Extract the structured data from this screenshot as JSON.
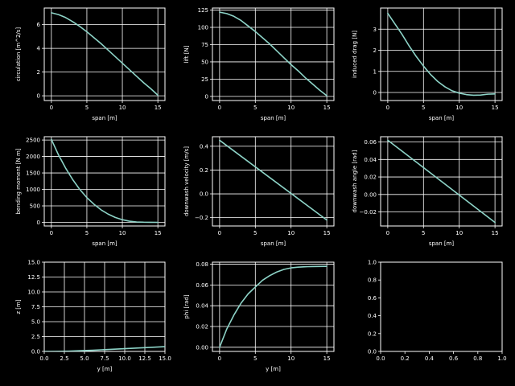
{
  "chart_data": [
    {
      "type": "line",
      "xlabel": "span [m]",
      "ylabel": "circulation [m^2/s]",
      "xlim": [
        -1,
        16
      ],
      "ylim": [
        -0.4,
        7.4
      ],
      "xticks": [
        0,
        5,
        10,
        15
      ],
      "yticks": [
        0,
        2,
        4,
        6
      ],
      "tick_labels_x": [
        "0",
        "5",
        "10",
        "15"
      ],
      "tick_labels_y": [
        "0",
        "2",
        "4",
        "6"
      ],
      "grid": true,
      "series": [
        {
          "x": [
            0,
            1,
            2,
            3,
            4,
            5,
            6,
            7,
            8,
            9,
            10,
            11,
            12,
            13,
            14,
            15
          ],
          "y": [
            7.0,
            6.85,
            6.6,
            6.25,
            5.85,
            5.4,
            4.9,
            4.4,
            3.85,
            3.3,
            2.75,
            2.2,
            1.65,
            1.1,
            0.6,
            0.05
          ]
        }
      ]
    },
    {
      "type": "line",
      "xlabel": "span [m]",
      "ylabel": "lift [N]",
      "xlim": [
        -1,
        16
      ],
      "ylim": [
        -6,
        128
      ],
      "xticks": [
        0,
        5,
        10,
        15
      ],
      "yticks": [
        0,
        25,
        50,
        75,
        100,
        125
      ],
      "tick_labels_x": [
        "0",
        "5",
        "10",
        "15"
      ],
      "tick_labels_y": [
        "0",
        "25",
        "50",
        "75",
        "100",
        "125"
      ],
      "grid": true,
      "series": [
        {
          "x": [
            0,
            1,
            2,
            3,
            4,
            5,
            6,
            7,
            8,
            9,
            10,
            11,
            12,
            13,
            14,
            15
          ],
          "y": [
            122,
            120,
            116,
            110,
            102,
            94,
            85,
            76,
            66,
            56,
            46,
            37,
            27,
            18,
            9,
            1
          ]
        }
      ]
    },
    {
      "type": "line",
      "xlabel": "span [m]",
      "ylabel": "induced drag [N]",
      "xlim": [
        -1,
        16
      ],
      "ylim": [
        -0.38,
        4.0
      ],
      "xticks": [
        0,
        5,
        10,
        15
      ],
      "yticks": [
        0,
        1,
        2,
        3
      ],
      "tick_labels_x": [
        "0",
        "5",
        "10",
        "15"
      ],
      "tick_labels_y": [
        "0",
        "1",
        "2",
        "3"
      ],
      "grid": true,
      "series": [
        {
          "x": [
            0,
            1,
            2,
            3,
            4,
            5,
            6,
            7,
            8,
            9,
            10,
            11,
            12,
            13,
            14,
            15
          ],
          "y": [
            3.75,
            3.25,
            2.75,
            2.2,
            1.7,
            1.25,
            0.85,
            0.52,
            0.27,
            0.08,
            -0.03,
            -0.1,
            -0.13,
            -0.12,
            -0.08,
            -0.07
          ]
        }
      ]
    },
    {
      "type": "line",
      "xlabel": "span [m]",
      "ylabel": "bending moment [N m]",
      "xlim": [
        -1,
        16
      ],
      "ylim": [
        -110,
        2600
      ],
      "xticks": [
        0,
        5,
        10,
        15
      ],
      "yticks": [
        0,
        500,
        1000,
        1500,
        2000,
        2500
      ],
      "tick_labels_x": [
        "0",
        "5",
        "10",
        "15"
      ],
      "tick_labels_y": [
        "0",
        "500",
        "1000",
        "1500",
        "2000",
        "2500"
      ],
      "grid": true,
      "series": [
        {
          "x": [
            0,
            1,
            2,
            3,
            4,
            5,
            6,
            7,
            8,
            9,
            10,
            11,
            12,
            13,
            14,
            15
          ],
          "y": [
            2520,
            2050,
            1650,
            1300,
            1000,
            750,
            550,
            380,
            250,
            150,
            80,
            35,
            12,
            4,
            1,
            0
          ]
        }
      ]
    },
    {
      "type": "line",
      "xlabel": "span [m]",
      "ylabel": "downwash velocity [m/s]",
      "xlim": [
        -1,
        16
      ],
      "ylim": [
        -0.27,
        0.48
      ],
      "xticks": [
        0,
        5,
        10,
        15
      ],
      "yticks": [
        -0.2,
        0.0,
        0.2,
        0.4
      ],
      "tick_labels_x": [
        "0",
        "5",
        "10",
        "15"
      ],
      "tick_labels_y": [
        "−0.2",
        "0.0",
        "0.2",
        "0.4"
      ],
      "grid": true,
      "series": [
        {
          "x": [
            0,
            15
          ],
          "y": [
            0.45,
            -0.22
          ]
        }
      ]
    },
    {
      "type": "line",
      "xlabel": "span [m]",
      "ylabel": "downwash angle [rad]",
      "xlim": [
        -1,
        16
      ],
      "ylim": [
        -0.036,
        0.066
      ],
      "xticks": [
        0,
        5,
        10,
        15
      ],
      "yticks": [
        -0.02,
        0.0,
        0.02,
        0.04,
        0.06
      ],
      "tick_labels_x": [
        "0",
        "5",
        "10",
        "15"
      ],
      "tick_labels_y": [
        "−0.02",
        "0.00",
        "0.02",
        "0.04",
        "0.06"
      ],
      "grid": true,
      "series": [
        {
          "x": [
            0,
            15
          ],
          "y": [
            0.062,
            -0.032
          ]
        }
      ]
    },
    {
      "type": "line",
      "xlabel": "y [m]",
      "ylabel": "z [m]",
      "xlim": [
        0,
        15
      ],
      "ylim": [
        0,
        15
      ],
      "xticks": [
        0,
        2.5,
        5,
        7.5,
        10,
        12.5,
        15
      ],
      "yticks": [
        0,
        2.5,
        5,
        7.5,
        10,
        12.5,
        15
      ],
      "tick_labels_x": [
        "0.0",
        "2.5",
        "5.0",
        "7.5",
        "10.0",
        "12.5",
        "15.0"
      ],
      "tick_labels_y": [
        "0.0",
        "2.5",
        "5.0",
        "7.5",
        "10.0",
        "12.5",
        "15.0"
      ],
      "grid": true,
      "series": [
        {
          "x": [
            0,
            1.5,
            3,
            4.5,
            6,
            7.5,
            9,
            10.5,
            12,
            13.5,
            15
          ],
          "y": [
            0,
            0.01,
            0.05,
            0.12,
            0.2,
            0.3,
            0.4,
            0.5,
            0.6,
            0.7,
            0.8
          ]
        }
      ]
    },
    {
      "type": "line",
      "xlabel": "y [m]",
      "ylabel": "phi [rad]",
      "xlim": [
        -1,
        16
      ],
      "ylim": [
        -0.004,
        0.082
      ],
      "xticks": [
        0,
        5,
        10,
        15
      ],
      "yticks": [
        0,
        0.02,
        0.04,
        0.06,
        0.08
      ],
      "tick_labels_x": [
        "0",
        "5",
        "10",
        "15"
      ],
      "tick_labels_y": [
        "0.00",
        "0.02",
        "0.04",
        "0.06",
        "0.08"
      ],
      "grid": true,
      "series": [
        {
          "x": [
            0,
            1,
            2,
            3,
            4,
            5,
            6,
            7,
            8,
            9,
            10,
            11,
            12,
            13,
            14,
            15
          ],
          "y": [
            0,
            0.0175,
            0.031,
            0.0425,
            0.0515,
            0.058,
            0.0645,
            0.069,
            0.0725,
            0.075,
            0.0765,
            0.0772,
            0.0776,
            0.0778,
            0.0779,
            0.078
          ]
        }
      ]
    },
    {
      "type": "line",
      "xlabel": "",
      "ylabel": "",
      "xlim": [
        0,
        1
      ],
      "ylim": [
        0,
        1
      ],
      "xticks": [
        0,
        0.2,
        0.4,
        0.6,
        0.8,
        1.0
      ],
      "yticks": [
        0,
        0.2,
        0.4,
        0.6,
        0.8,
        1.0
      ],
      "tick_labels_x": [
        "0.0",
        "0.2",
        "0.4",
        "0.6",
        "0.8",
        "1.0"
      ],
      "tick_labels_y": [
        "0.0",
        "0.2",
        "0.4",
        "0.6",
        "0.8",
        "1.0"
      ],
      "grid": false,
      "series": []
    }
  ],
  "colors": {
    "background": "#000000",
    "foreground": "#ffffff",
    "series": "#8dd3c7"
  }
}
